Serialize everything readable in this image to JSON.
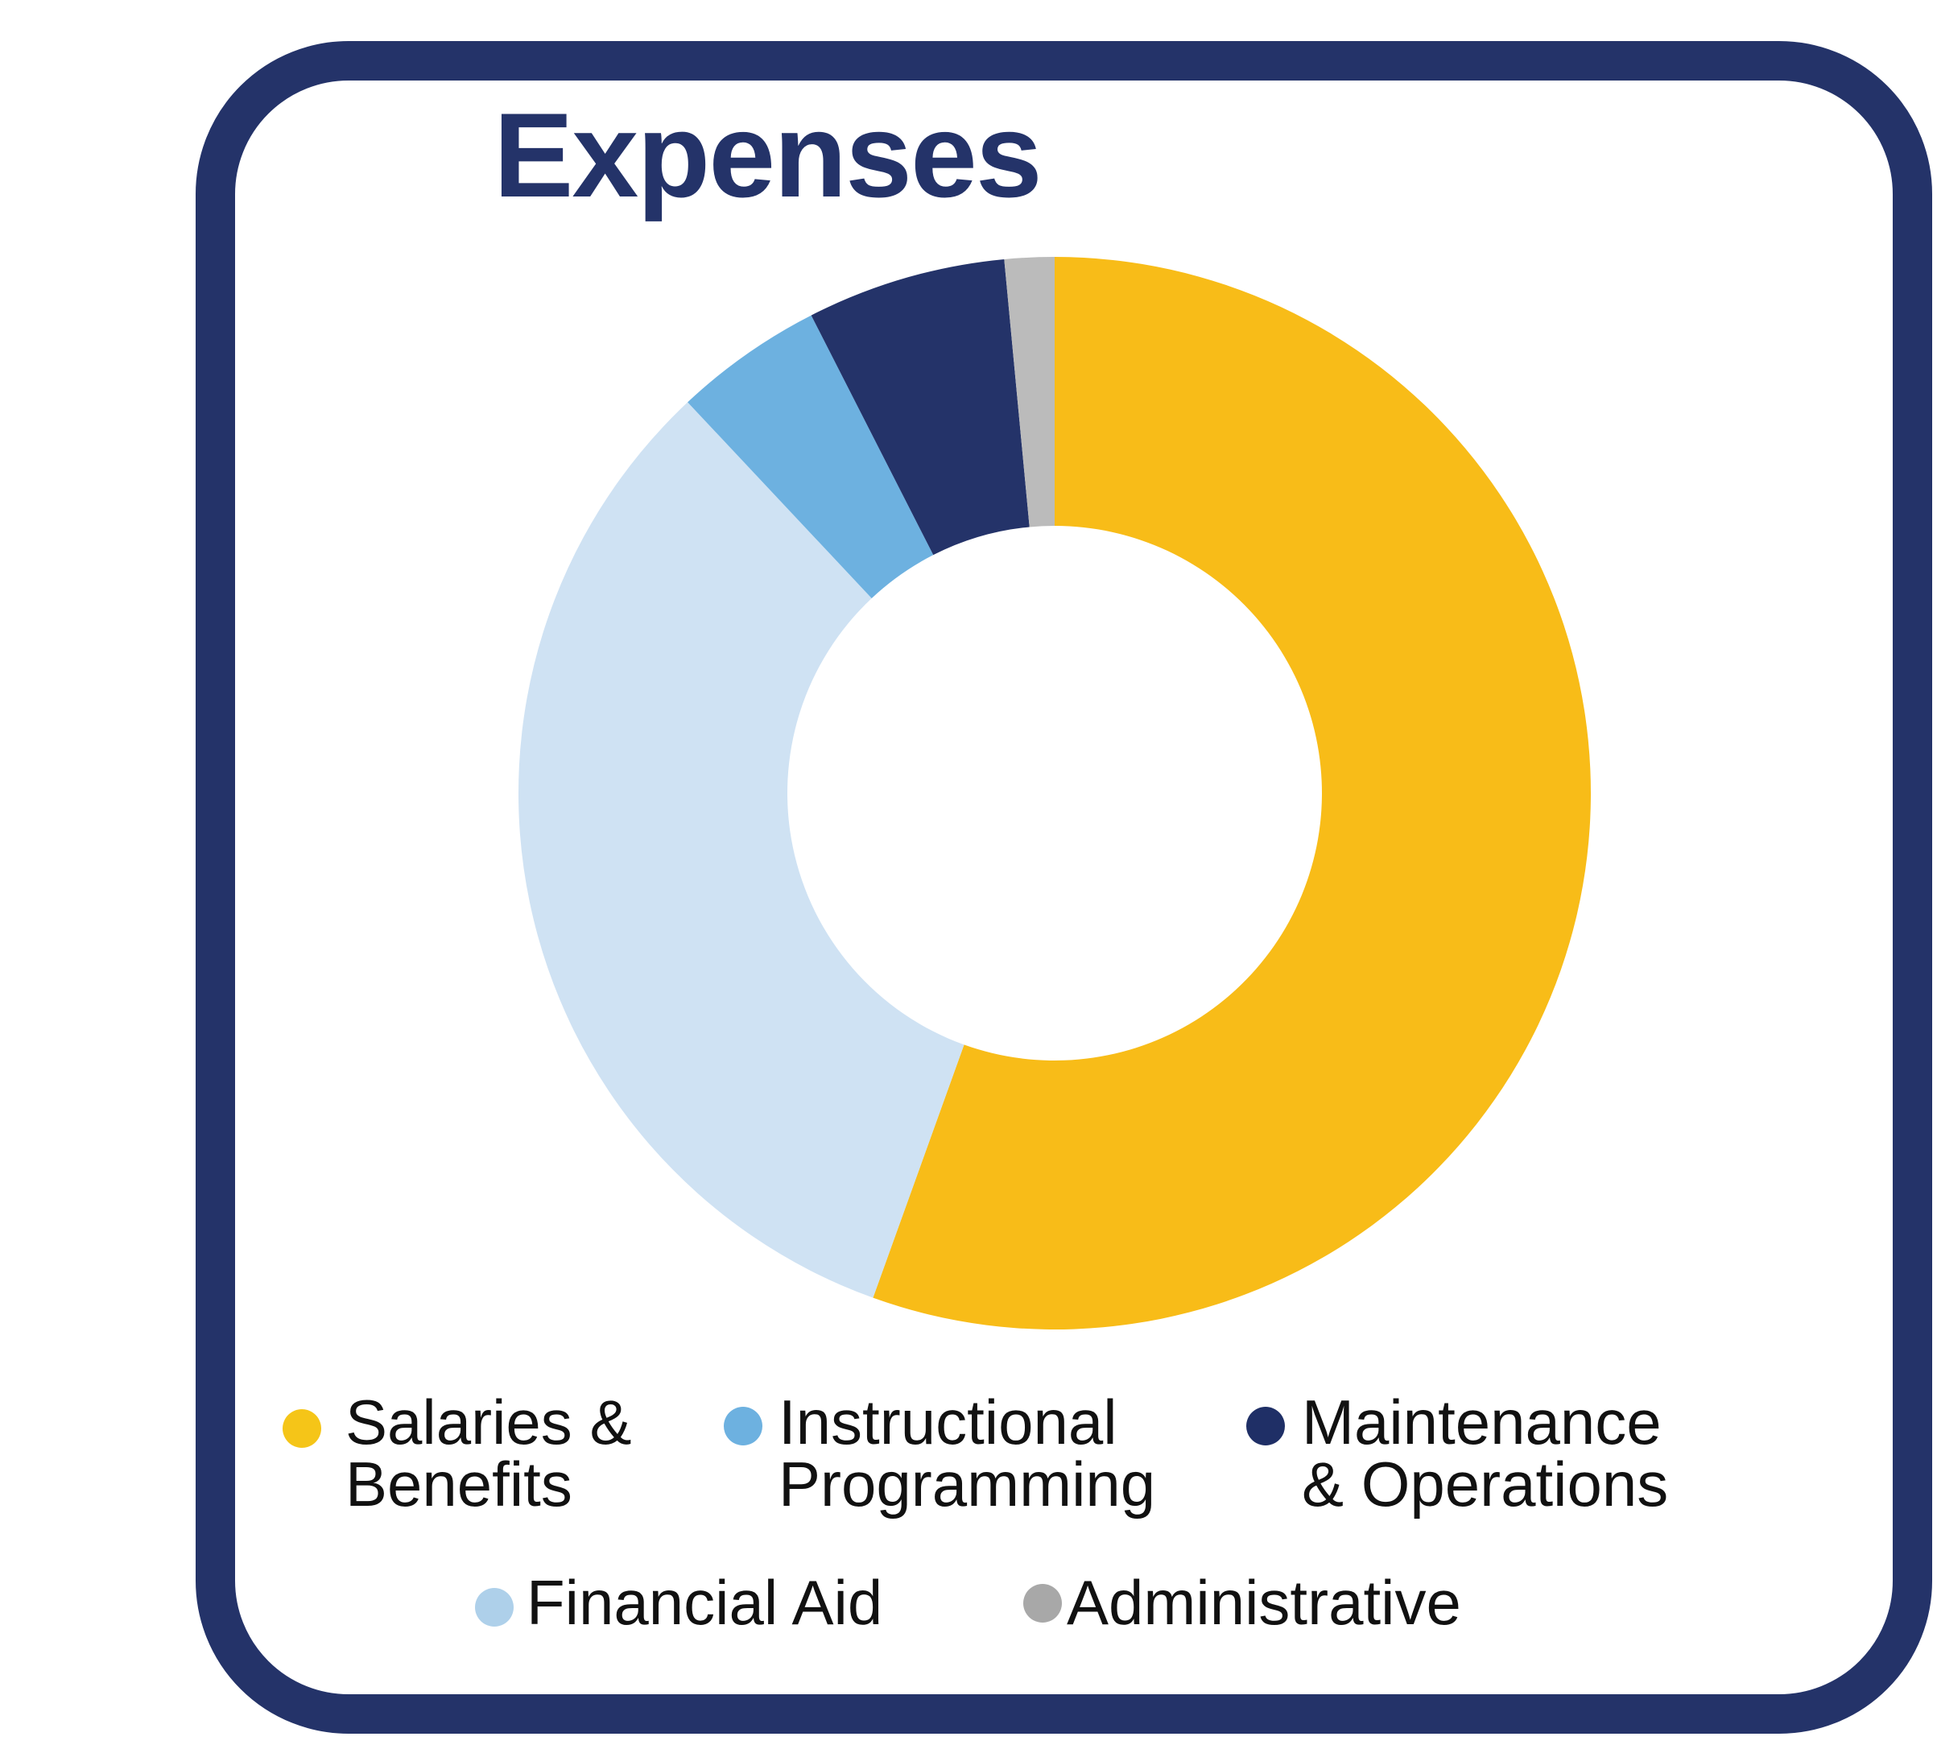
{
  "chart_data": {
    "type": "pie",
    "donut": true,
    "title": "Expenses",
    "categories": [
      "Salaries &\nBenefits",
      "Financial Aid",
      "Instructional\nProgramming",
      "Maintenance\n& Operations",
      "Administrative"
    ],
    "values": [
      55.5,
      32.5,
      4.5,
      6.0,
      1.5
    ],
    "unit": "%",
    "colors": [
      "#F8BC18",
      "#CFE2F3",
      "#6DB1E0",
      "#243369",
      "#BBBBBB"
    ],
    "legend_placement": "bottom",
    "grid": false
  },
  "legend": [
    {
      "label": "Salaries &\nBenefits",
      "color": "#F5C518"
    },
    {
      "label": "Instructional\nProgramming",
      "color": "#6DB1E0"
    },
    {
      "label": "Maintenance\n& Operations",
      "color": "#1F2F66"
    },
    {
      "label": "Financial Aid",
      "color": "#AED0EA"
    },
    {
      "label": "Administrative",
      "color": "#A8A8A8"
    }
  ],
  "frame_color": "#243369"
}
